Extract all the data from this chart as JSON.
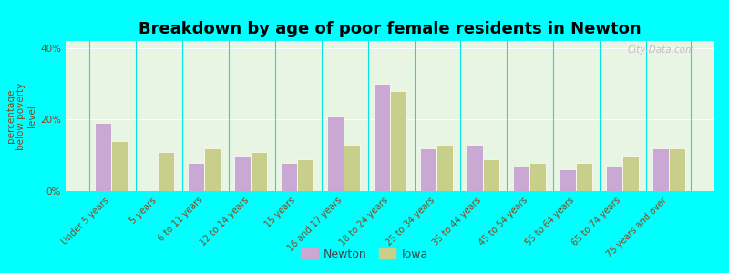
{
  "title": "Breakdown by age of poor female residents in Newton",
  "ylabel": "percentage\nbelow poverty\nlevel",
  "categories": [
    "Under 5 years",
    "5 years",
    "6 to 11 years",
    "12 to 14 years",
    "15 years",
    "16 and 17 years",
    "18 to 24 years",
    "25 to 34 years",
    "35 to 44 years",
    "45 to 54 years",
    "55 to 64 years",
    "65 to 74 years",
    "75 years and over"
  ],
  "newton_values": [
    19,
    0,
    8,
    10,
    8,
    21,
    30,
    12,
    13,
    7,
    6,
    7,
    12
  ],
  "iowa_values": [
    14,
    11,
    12,
    11,
    9,
    13,
    28,
    13,
    9,
    8,
    8,
    10,
    12
  ],
  "newton_color": "#c9a8d4",
  "iowa_color": "#c8cf8a",
  "bg_color": "#e8f5e2",
  "outer_bg": "#00ffff",
  "ylim": [
    0,
    42
  ],
  "yticks": [
    0,
    20,
    40
  ],
  "ytick_labels": [
    "0%",
    "20%",
    "40%"
  ],
  "bar_width": 0.35,
  "legend_labels": [
    "Newton",
    "Iowa"
  ],
  "title_fontsize": 13,
  "axis_fontsize": 7.5,
  "label_fontsize": 7.0
}
